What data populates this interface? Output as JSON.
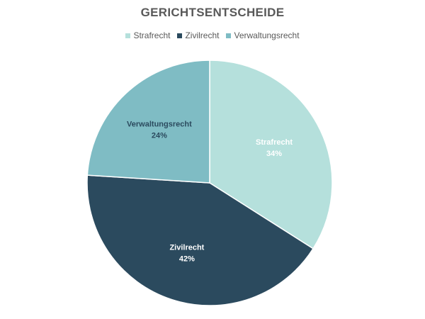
{
  "chart_data": {
    "type": "pie",
    "title": "GERICHTSENTSCHEIDE",
    "legend_position": "top",
    "categories": [
      "Strafrecht",
      "Zivilrecht",
      "Verwaltungsrecht"
    ],
    "values": [
      34,
      42,
      24
    ],
    "value_labels": [
      "34%",
      "42%",
      "24%"
    ],
    "unit": "%",
    "colors": [
      "#b5e0dc",
      "#2b4a5e",
      "#7fbcc4"
    ],
    "label_colors": [
      "#ffffff",
      "#ffffff",
      "#2b4a5e"
    ]
  }
}
